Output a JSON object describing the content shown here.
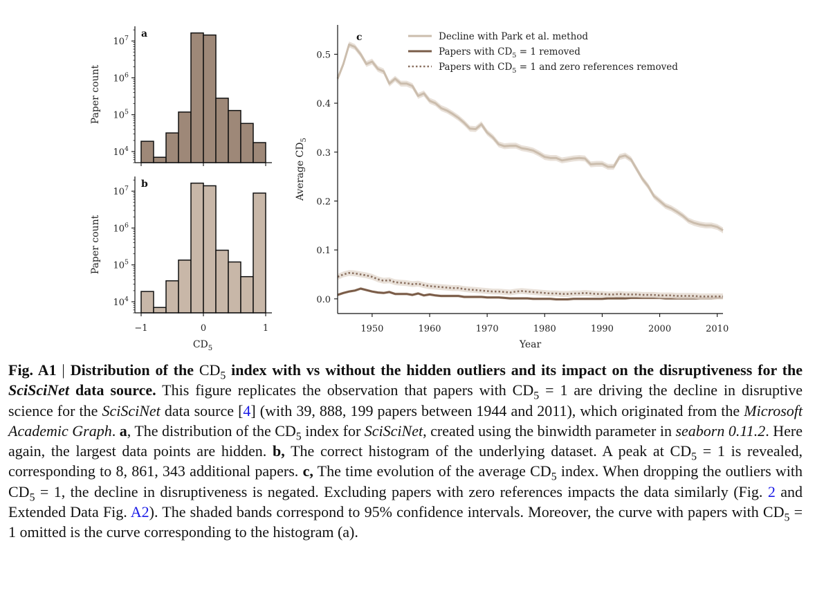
{
  "figure": {
    "colors": {
      "hist_a": "#9e8878",
      "hist_b": "#c8b7a8",
      "edge": "#111111",
      "line_park": "#cbbdad",
      "line_removed": "#7a5c48",
      "line_zero": "#8a7060",
      "band": "#e4d9cf"
    },
    "histograms": [
      {
        "panel": "a",
        "ylabel": "Paper count",
        "yscale": "log",
        "ylim": [
          5000,
          25000000
        ],
        "yticks": [
          {
            "v": 10000,
            "base": "10",
            "exp": "4"
          },
          {
            "v": 100000,
            "base": "10",
            "exp": "5"
          },
          {
            "v": 1000000,
            "base": "10",
            "exp": "6"
          },
          {
            "v": 10000000,
            "base": "10",
            "exp": "7"
          }
        ],
        "bins": [
          -1.0,
          -0.8,
          -0.6,
          -0.4,
          -0.2,
          0.0,
          0.2,
          0.4,
          0.6,
          0.8,
          1.0
        ],
        "counts": [
          19000,
          7000,
          32000,
          118000,
          16500000,
          14500000,
          280000,
          130000,
          58000,
          17500
        ]
      },
      {
        "panel": "b",
        "ylabel": "Paper count",
        "yscale": "log",
        "ylim": [
          5000,
          25000000
        ],
        "yticks": [
          {
            "v": 10000,
            "base": "10",
            "exp": "4"
          },
          {
            "v": 100000,
            "base": "10",
            "exp": "5"
          },
          {
            "v": 1000000,
            "base": "10",
            "exp": "6"
          },
          {
            "v": 10000000,
            "base": "10",
            "exp": "7"
          }
        ],
        "bins": [
          -1.0,
          -0.8,
          -0.6,
          -0.4,
          -0.2,
          0.0,
          0.2,
          0.4,
          0.6,
          0.8,
          1.0
        ],
        "counts": [
          19000,
          7000,
          37000,
          135000,
          16500000,
          14000000,
          250000,
          120000,
          48000,
          8861343
        ],
        "xticks": [
          "−1",
          "0",
          "1"
        ],
        "xlabel_base": "CD",
        "xlabel_sub": "5"
      }
    ],
    "line_panel": {
      "panel": "c",
      "ylabel_base": "Average CD",
      "ylabel_sub": "5",
      "xlabel": "Year",
      "xlim": [
        1944,
        2011
      ],
      "ylim": [
        -0.03,
        0.56
      ],
      "xticks": [
        "1950",
        "1960",
        "1970",
        "1980",
        "1990",
        "2000",
        "2010"
      ],
      "yticks": [
        "0.0",
        "0.1",
        "0.2",
        "0.3",
        "0.4",
        "0.5"
      ],
      "legend_position": "top-right",
      "legend": [
        {
          "label": "Decline with Park et al. method",
          "style": "solid-light"
        },
        {
          "label_pre": "Papers with CD",
          "label_sub": "5",
          "label_post": " = 1 removed",
          "style": "solid-dark"
        },
        {
          "label_pre": "Papers with CD",
          "label_sub": "5",
          "label_post": " = 1 and zero references removed",
          "style": "dotted"
        }
      ]
    }
  },
  "chart_data": [
    {
      "type": "bar",
      "title": "a",
      "ylabel": "Paper count",
      "yscale": "log",
      "categories": [
        "[-1.0,-0.8)",
        "[-0.8,-0.6)",
        "[-0.6,-0.4)",
        "[-0.4,-0.2)",
        "[-0.2,0.0)",
        "[0.0,0.2)",
        "[0.2,0.4)",
        "[0.4,0.6)",
        "[0.6,0.8)",
        "[0.8,1.0]"
      ],
      "values": [
        19000,
        7000,
        32000,
        118000,
        16500000,
        14500000,
        280000,
        130000,
        58000,
        17500
      ]
    },
    {
      "type": "bar",
      "title": "b",
      "xlabel": "CD5",
      "ylabel": "Paper count",
      "yscale": "log",
      "categories": [
        "[-1.0,-0.8)",
        "[-0.8,-0.6)",
        "[-0.6,-0.4)",
        "[-0.4,-0.2)",
        "[-0.2,0.0)",
        "[0.0,0.2)",
        "[0.2,0.4)",
        "[0.4,0.6)",
        "[0.6,0.8)",
        "[0.8,1.0]"
      ],
      "values": [
        19000,
        7000,
        37000,
        135000,
        16500000,
        14000000,
        250000,
        120000,
        48000,
        8861343
      ]
    },
    {
      "type": "line",
      "title": "c",
      "xlabel": "Year",
      "ylabel": "Average CD5",
      "xlim": [
        1944,
        2011
      ],
      "grid": false,
      "x": [
        1944,
        1945,
        1946,
        1947,
        1948,
        1949,
        1950,
        1951,
        1952,
        1953,
        1954,
        1955,
        1956,
        1957,
        1958,
        1959,
        1960,
        1961,
        1962,
        1963,
        1964,
        1965,
        1966,
        1967,
        1968,
        1969,
        1970,
        1971,
        1972,
        1973,
        1974,
        1975,
        1976,
        1977,
        1978,
        1979,
        1980,
        1981,
        1982,
        1983,
        1984,
        1985,
        1986,
        1987,
        1988,
        1989,
        1990,
        1991,
        1992,
        1993,
        1994,
        1995,
        1996,
        1997,
        1998,
        1999,
        2000,
        2001,
        2002,
        2003,
        2004,
        2005,
        2006,
        2007,
        2008,
        2009,
        2010,
        2011
      ],
      "series": [
        {
          "name": "Decline with Park et al. method",
          "values": [
            0.45,
            0.48,
            0.52,
            0.515,
            0.5,
            0.48,
            0.485,
            0.47,
            0.465,
            0.44,
            0.45,
            0.44,
            0.44,
            0.435,
            0.415,
            0.42,
            0.405,
            0.4,
            0.39,
            0.385,
            0.378,
            0.37,
            0.36,
            0.348,
            0.347,
            0.357,
            0.34,
            0.33,
            0.316,
            0.312,
            0.313,
            0.313,
            0.308,
            0.306,
            0.303,
            0.297,
            0.29,
            0.288,
            0.288,
            0.283,
            0.285,
            0.287,
            0.288,
            0.287,
            0.275,
            0.276,
            0.276,
            0.27,
            0.27,
            0.29,
            0.293,
            0.285,
            0.265,
            0.245,
            0.23,
            0.21,
            0.2,
            0.19,
            0.185,
            0.178,
            0.17,
            0.16,
            0.155,
            0.152,
            0.15,
            0.15,
            0.147,
            0.14
          ]
        },
        {
          "name": "Papers with CD5 = 1 removed",
          "values": [
            0.008,
            0.012,
            0.015,
            0.017,
            0.021,
            0.018,
            0.015,
            0.013,
            0.012,
            0.014,
            0.01,
            0.01,
            0.01,
            0.008,
            0.011,
            0.007,
            0.009,
            0.007,
            0.006,
            0.006,
            0.006,
            0.006,
            0.004,
            0.004,
            0.004,
            0.004,
            0.003,
            0.003,
            0.003,
            0.002,
            0.001,
            0.001,
            0.001,
            0.001,
            0.0,
            0.0,
            0.0,
            0.0,
            -0.001,
            -0.001,
            -0.001,
            0.0,
            0.0,
            0.0,
            0.0,
            0.0,
            0.0,
            0.001,
            0.001,
            0.001,
            0.001,
            0.002,
            0.002,
            0.002,
            0.002,
            0.002,
            0.002,
            0.001,
            0.001,
            0.001,
            0.001,
            0.001,
            0.001,
            0.001,
            0.001,
            0.001,
            0.002,
            0.002
          ]
        },
        {
          "name": "Papers with CD5 = 1 and zero references removed",
          "values": [
            0.045,
            0.05,
            0.053,
            0.052,
            0.05,
            0.048,
            0.045,
            0.04,
            0.037,
            0.038,
            0.034,
            0.033,
            0.032,
            0.03,
            0.031,
            0.028,
            0.026,
            0.025,
            0.024,
            0.023,
            0.022,
            0.022,
            0.02,
            0.019,
            0.018,
            0.017,
            0.016,
            0.015,
            0.015,
            0.014,
            0.013,
            0.015,
            0.016,
            0.015,
            0.014,
            0.013,
            0.012,
            0.011,
            0.011,
            0.01,
            0.01,
            0.011,
            0.011,
            0.012,
            0.011,
            0.01,
            0.01,
            0.009,
            0.009,
            0.01,
            0.009,
            0.009,
            0.009,
            0.008,
            0.008,
            0.008,
            0.007,
            0.007,
            0.007,
            0.006,
            0.006,
            0.006,
            0.006,
            0.005,
            0.005,
            0.005,
            0.005,
            0.005
          ]
        }
      ]
    }
  ],
  "caption": [
    {
      "t": "Fig. A1",
      "s": "b"
    },
    {
      "t": " | ",
      "s": ""
    },
    {
      "t": "Distribution of the ",
      "s": "b"
    },
    {
      "t": "CD",
      "s": ""
    },
    {
      "t": "5",
      "s": "sub"
    },
    {
      "t": " index with vs without the hidden outliers and its impact on the disruptiveness for the ",
      "s": "b"
    },
    {
      "t": "SciSciNet",
      "s": "bi"
    },
    {
      "t": " data source.",
      "s": "b"
    },
    {
      "t": " This figure replicates the observation that papers with CD",
      "s": ""
    },
    {
      "t": "5",
      "s": "sub"
    },
    {
      "t": " = 1 are driving the decline in disruptive science for the ",
      "s": ""
    },
    {
      "t": "SciSciNet",
      "s": "i"
    },
    {
      "t": " data source [",
      "s": ""
    },
    {
      "t": "4",
      "s": "link"
    },
    {
      "t": "] (with 39, 888, 199 papers between 1944 and 2011), which originated from the ",
      "s": ""
    },
    {
      "t": "Microsoft Academic Graph",
      "s": "i"
    },
    {
      "t": ". ",
      "s": ""
    },
    {
      "t": "a",
      "s": "b"
    },
    {
      "t": ", The distribution of the CD",
      "s": ""
    },
    {
      "t": "5",
      "s": "sub"
    },
    {
      "t": " index for ",
      "s": ""
    },
    {
      "t": "SciSciNet",
      "s": "i"
    },
    {
      "t": ", created using the binwidth parameter in ",
      "s": ""
    },
    {
      "t": "seaborn 0.11.2",
      "s": "i"
    },
    {
      "t": ". Here again, the largest data points are hidden. ",
      "s": ""
    },
    {
      "t": "b,",
      "s": "b"
    },
    {
      "t": " The correct histogram of the underlying dataset. A peak at CD",
      "s": ""
    },
    {
      "t": "5",
      "s": "sub"
    },
    {
      "t": " = 1 is revealed, corresponding to 8, 861, 343 additional papers. ",
      "s": ""
    },
    {
      "t": "c,",
      "s": "b"
    },
    {
      "t": " The time evolution of the average CD",
      "s": ""
    },
    {
      "t": "5",
      "s": "sub"
    },
    {
      "t": " index. When dropping the outliers with CD",
      "s": ""
    },
    {
      "t": "5",
      "s": "sub"
    },
    {
      "t": " = 1, the decline in disruptiveness is negated. Excluding papers with zero references impacts the data similarly (Fig. ",
      "s": ""
    },
    {
      "t": "2",
      "s": "link"
    },
    {
      "t": " and Extended Data Fig. ",
      "s": ""
    },
    {
      "t": "A2",
      "s": "link"
    },
    {
      "t": "). The shaded bands correspond to 95% confidence intervals. Moreover, the curve with papers with CD",
      "s": ""
    },
    {
      "t": "5",
      "s": "sub"
    },
    {
      "t": " = 1 omitted is the curve corresponding to the histogram (a).",
      "s": ""
    }
  ]
}
